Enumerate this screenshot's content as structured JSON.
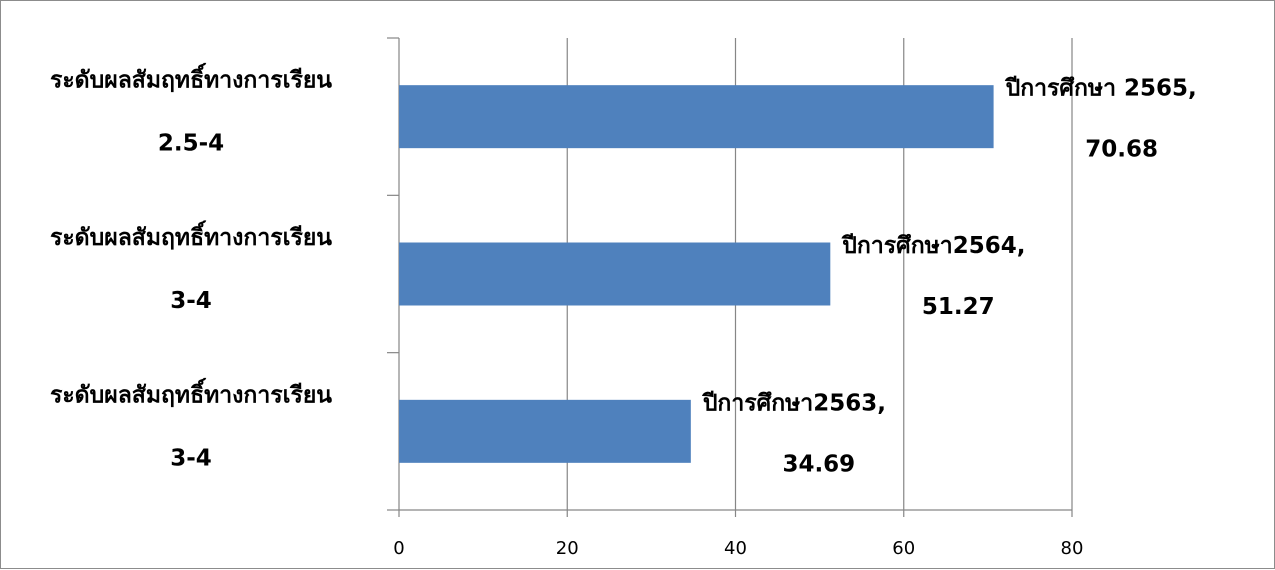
{
  "chart_data": {
    "type": "bar",
    "orientation": "horizontal",
    "title": "",
    "xlabel": "",
    "ylabel": "",
    "xlim": [
      0,
      80
    ],
    "x_ticks": [
      "0",
      "20",
      "40",
      "60",
      "80"
    ],
    "grid": "vertical major gridlines",
    "legend": "none",
    "bar_color": "#4F81BD",
    "categories": [
      {
        "line1": "ระดับผลสัมฤทธิ์ทางการเรียน",
        "line2": "2.5-4"
      },
      {
        "line1": "ระดับผลสัมฤทธิ์ทางการเรียน",
        "line2": "3-4"
      },
      {
        "line1": "ระดับผลสัมฤทธิ์ทางการเรียน",
        "line2": "3-4"
      }
    ],
    "values": [
      70.68,
      51.27,
      34.69
    ],
    "data_labels": [
      {
        "name": "ปีการศึกษา 2565,",
        "value": "70.68"
      },
      {
        "name": "ปีการศึกษา2564,",
        "value": "51.27"
      },
      {
        "name": "ปีการศึกษา2563,",
        "value": "34.69"
      }
    ]
  }
}
